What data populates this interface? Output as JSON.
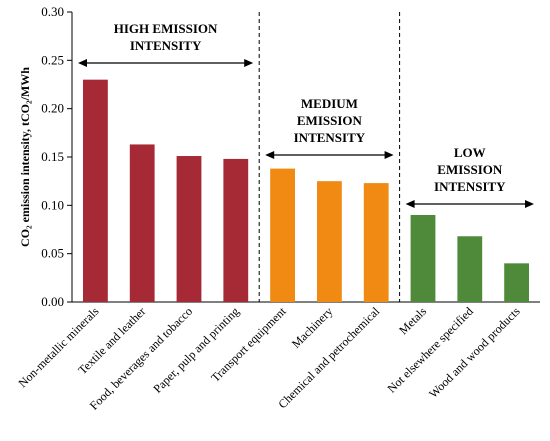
{
  "chart_data": {
    "type": "bar",
    "title": "",
    "xlabel": "",
    "ylabel": "CO₂ emission intensity, tCO₂/MWh",
    "ylim": [
      0,
      0.3
    ],
    "y_ticks": [
      "0.00",
      "0.05",
      "0.10",
      "0.15",
      "0.20",
      "0.25",
      "0.30"
    ],
    "categories": [
      "Non-metallic minerals",
      "Textile and leather",
      "Food, beverages and tobacco",
      "Paper, pulp and printing",
      "Transport equipment",
      "Machinery",
      "Chemical and petrochemical",
      "Metals",
      "Not elsewhere specified",
      "Wood and wood products"
    ],
    "values": [
      0.23,
      0.163,
      0.151,
      0.148,
      0.138,
      0.125,
      0.123,
      0.09,
      0.068,
      0.04
    ],
    "groups": [
      {
        "label_lines": [
          "HIGH EMISSION",
          "INTENSITY"
        ],
        "start": 0,
        "end": 3,
        "color": "#a52a35"
      },
      {
        "label_lines": [
          "MEDIUM",
          "EMISSION",
          "INTENSITY"
        ],
        "start": 4,
        "end": 6,
        "color": "#f08a12"
      },
      {
        "label_lines": [
          "LOW",
          "EMISSION",
          "INTENSITY"
        ],
        "start": 7,
        "end": 9,
        "color": "#4f8a3a"
      }
    ],
    "grid": false,
    "legend": "none"
  }
}
